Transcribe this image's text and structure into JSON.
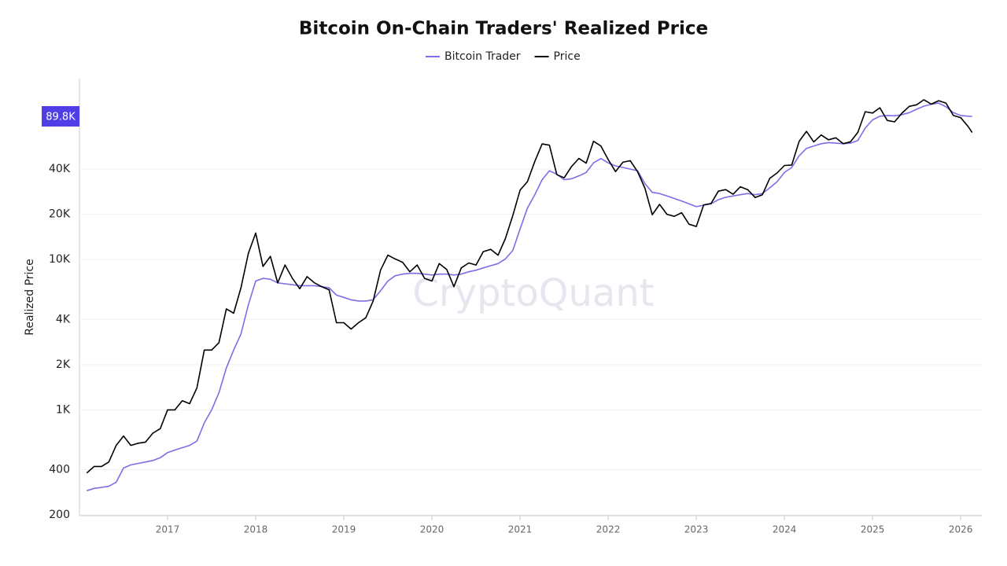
{
  "chart_data": {
    "type": "line",
    "title": "Bitcoin On-Chain Traders' Realized Price",
    "y_label": "Realized Price",
    "watermark": "CryptoQuant",
    "log_y": true,
    "grid": true,
    "legend": "top",
    "xlim": [
      2016.0,
      2026.24
    ],
    "xticks": [
      2017,
      2018,
      2019,
      2020,
      2021,
      2022,
      2023,
      2024,
      2025,
      2026
    ],
    "ylim": [
      200,
      160000
    ],
    "yticks": [
      200,
      400,
      {
        "value": 1000,
        "label": "1K"
      },
      {
        "value": 2000,
        "label": "2K"
      },
      {
        "value": 4000,
        "label": "4K"
      },
      {
        "value": 10000,
        "label": "10K"
      },
      {
        "value": 20000,
        "label": "20K"
      },
      {
        "value": 40000,
        "label": "40K"
      }
    ],
    "price_marker": {
      "value": 89800,
      "label": "89.8K"
    },
    "x": [
      2016.083,
      2016.167,
      2016.25,
      2016.333,
      2016.417,
      2016.5,
      2016.583,
      2016.667,
      2016.75,
      2016.833,
      2016.917,
      2017,
      2017.083,
      2017.167,
      2017.25,
      2017.333,
      2017.417,
      2017.5,
      2017.583,
      2017.667,
      2017.75,
      2017.833,
      2017.917,
      2018,
      2018.083,
      2018.167,
      2018.25,
      2018.333,
      2018.417,
      2018.5,
      2018.583,
      2018.667,
      2018.75,
      2018.833,
      2018.917,
      2019,
      2019.083,
      2019.167,
      2019.25,
      2019.333,
      2019.417,
      2019.5,
      2019.583,
      2019.667,
      2019.75,
      2019.833,
      2019.917,
      2020,
      2020.083,
      2020.167,
      2020.25,
      2020.333,
      2020.417,
      2020.5,
      2020.583,
      2020.667,
      2020.75,
      2020.833,
      2020.917,
      2021,
      2021.083,
      2021.167,
      2021.25,
      2021.333,
      2021.417,
      2021.5,
      2021.583,
      2021.667,
      2021.75,
      2021.833,
      2021.917,
      2022,
      2022.083,
      2022.167,
      2022.25,
      2022.333,
      2022.417,
      2022.5,
      2022.583,
      2022.667,
      2022.75,
      2022.833,
      2022.917,
      2023,
      2023.083,
      2023.167,
      2023.25,
      2023.333,
      2023.417,
      2023.5,
      2023.583,
      2023.667,
      2023.75,
      2023.833,
      2023.917,
      2024,
      2024.083,
      2024.167,
      2024.25,
      2024.333,
      2024.417,
      2024.5,
      2024.583,
      2024.667,
      2024.75,
      2024.833,
      2024.917,
      2025,
      2025.083,
      2025.167,
      2025.25,
      2025.333,
      2025.417,
      2025.5,
      2025.583,
      2025.667,
      2025.75,
      2025.833,
      2025.917,
      2026,
      2026.083,
      2026.13
    ],
    "series": [
      {
        "name": "Bitcoin Trader",
        "color": "#7b6ee6",
        "values": [
          290,
          300,
          305,
          310,
          330,
          410,
          430,
          440,
          450,
          460,
          480,
          520,
          540,
          560,
          580,
          620,
          820,
          1000,
          1300,
          1900,
          2500,
          3200,
          5000,
          7200,
          7500,
          7400,
          7000,
          6900,
          6800,
          6700,
          6700,
          6700,
          6600,
          6500,
          5800,
          5600,
          5400,
          5300,
          5300,
          5400,
          6200,
          7200,
          7800,
          8000,
          8100,
          8100,
          8000,
          7900,
          8000,
          8000,
          7900,
          8000,
          8300,
          8500,
          8800,
          9100,
          9400,
          10100,
          11500,
          16000,
          22000,
          27000,
          34000,
          39000,
          37000,
          34000,
          34500,
          36000,
          38000,
          44000,
          47000,
          44000,
          42000,
          41000,
          40000,
          39000,
          32000,
          28000,
          27500,
          26500,
          25500,
          24500,
          23500,
          22500,
          23000,
          23500,
          25000,
          26000,
          26500,
          27000,
          27500,
          27000,
          27500,
          30000,
          33000,
          38000,
          41000,
          49000,
          55000,
          57000,
          59000,
          60000,
          59500,
          59000,
          59500,
          62000,
          75000,
          85000,
          90000,
          91000,
          90500,
          92000,
          95000,
          100000,
          105000,
          108000,
          110000,
          104000,
          95000,
          91000,
          90000,
          89800
        ]
      },
      {
        "name": "Price",
        "color": "#000000",
        "values": [
          380,
          420,
          420,
          450,
          580,
          670,
          580,
          600,
          610,
          700,
          750,
          1000,
          1000,
          1150,
          1100,
          1400,
          2500,
          2500,
          2800,
          4700,
          4400,
          6500,
          11000,
          15000,
          9000,
          10500,
          7000,
          9200,
          7500,
          6400,
          7700,
          7000,
          6600,
          6300,
          3800,
          3800,
          3450,
          3800,
          4100,
          5300,
          8500,
          10700,
          10100,
          9600,
          8300,
          9200,
          7500,
          7200,
          9400,
          8600,
          6600,
          8800,
          9500,
          9200,
          11300,
          11700,
          10700,
          13800,
          19600,
          29000,
          33000,
          45000,
          58800,
          57700,
          36700,
          35000,
          41500,
          47100,
          43800,
          61300,
          57000,
          46300,
          38500,
          44400,
          45500,
          38500,
          29800,
          19900,
          23300,
          20000,
          19400,
          20500,
          17200,
          16600,
          23100,
          23600,
          28500,
          29200,
          27200,
          30500,
          29200,
          25900,
          27000,
          34700,
          37700,
          42300,
          42600,
          61200,
          71300,
          60600,
          67500,
          62700,
          64600,
          59000,
          60800,
          70200,
          96400,
          94400,
          102400,
          84300,
          82500,
          94200,
          104600,
          107100,
          115700,
          108200,
          114000,
          110000,
          91000,
          88000,
          77000,
          70000
        ]
      }
    ]
  }
}
